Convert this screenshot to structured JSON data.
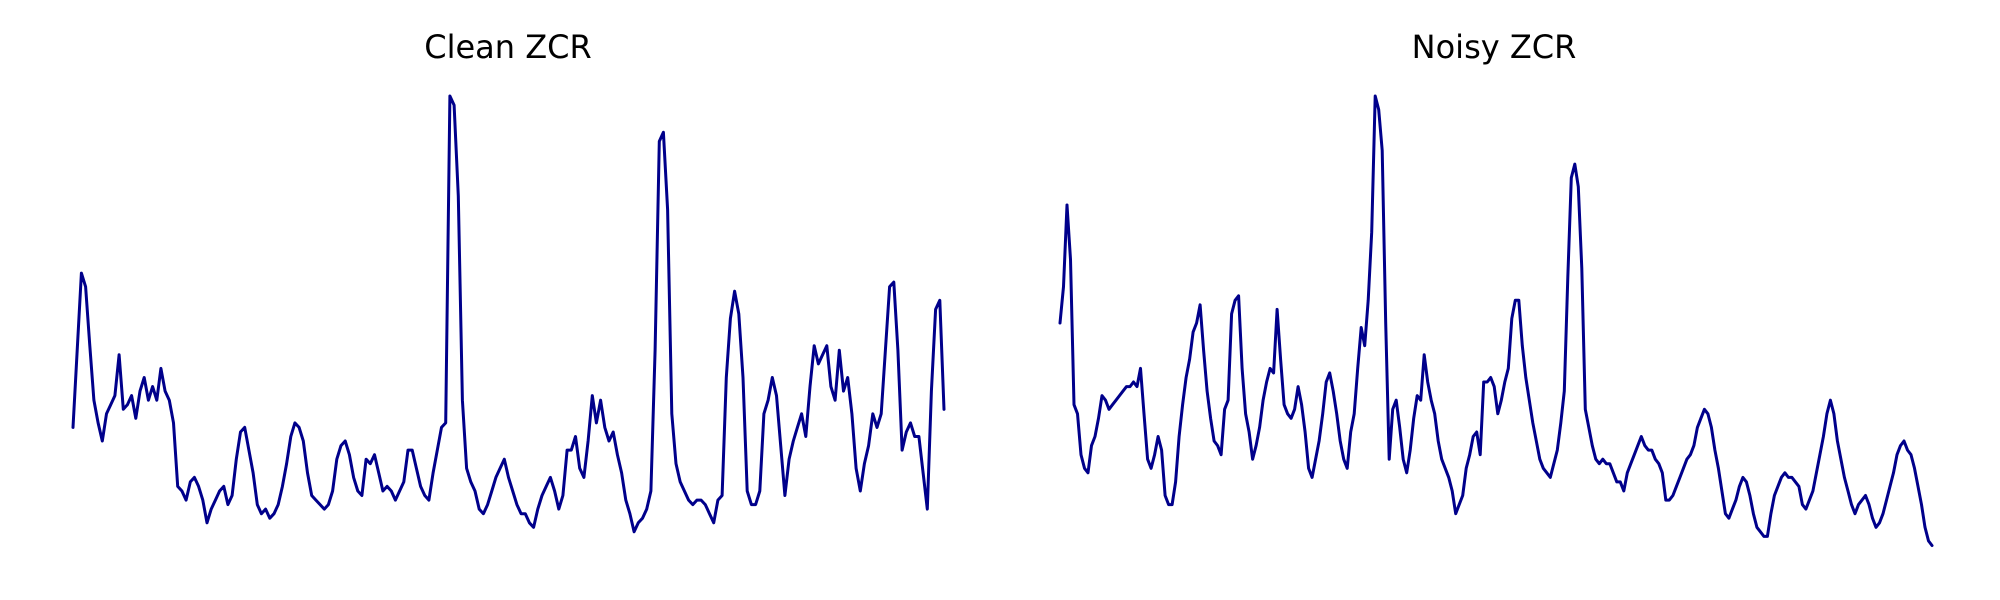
{
  "colors": {
    "line": "#00008B",
    "background": "#ffffff"
  },
  "chart_data": [
    {
      "type": "line",
      "title": "Clean ZCR",
      "xlabel": "",
      "ylabel": "",
      "axes": "off",
      "grid": false,
      "ylim": [
        0,
        1
      ],
      "series": [
        {
          "values": [
            0.27,
            0.44,
            0.61,
            0.58,
            0.45,
            0.33,
            0.28,
            0.24,
            0.3,
            0.32,
            0.34,
            0.43,
            0.31,
            0.32,
            0.34,
            0.29,
            0.35,
            0.38,
            0.33,
            0.36,
            0.33,
            0.4,
            0.35,
            0.33,
            0.28,
            0.14,
            0.13,
            0.11,
            0.15,
            0.16,
            0.14,
            0.11,
            0.06,
            0.09,
            0.11,
            0.13,
            0.14,
            0.1,
            0.12,
            0.2,
            0.26,
            0.27,
            0.22,
            0.17,
            0.1,
            0.08,
            0.09,
            0.07,
            0.08,
            0.1,
            0.14,
            0.19,
            0.25,
            0.28,
            0.27,
            0.24,
            0.17,
            0.12,
            0.11,
            0.1,
            0.09,
            0.1,
            0.13,
            0.2,
            0.23,
            0.24,
            0.21,
            0.16,
            0.13,
            0.12,
            0.2,
            0.19,
            0.21,
            0.17,
            0.13,
            0.14,
            0.13,
            0.11,
            0.13,
            0.15,
            0.22,
            0.22,
            0.18,
            0.14,
            0.12,
            0.11,
            0.17,
            0.22,
            0.27,
            0.28,
            1.0,
            0.98,
            0.78,
            0.33,
            0.18,
            0.15,
            0.13,
            0.09,
            0.08,
            0.1,
            0.13,
            0.16,
            0.18,
            0.2,
            0.16,
            0.13,
            0.1,
            0.08,
            0.08,
            0.06,
            0.05,
            0.09,
            0.12,
            0.14,
            0.16,
            0.13,
            0.09,
            0.12,
            0.22,
            0.22,
            0.25,
            0.18,
            0.16,
            0.24,
            0.34,
            0.28,
            0.33,
            0.27,
            0.24,
            0.26,
            0.21,
            0.17,
            0.11,
            0.08,
            0.04,
            0.06,
            0.07,
            0.09,
            0.13,
            0.44,
            0.9,
            0.92,
            0.75,
            0.3,
            0.19,
            0.15,
            0.13,
            0.11,
            0.1,
            0.11,
            0.11,
            0.1,
            0.08,
            0.06,
            0.11,
            0.12,
            0.38,
            0.51,
            0.57,
            0.52,
            0.38,
            0.13,
            0.1,
            0.1,
            0.13,
            0.3,
            0.33,
            0.38,
            0.34,
            0.23,
            0.12,
            0.2,
            0.24,
            0.27,
            0.3,
            0.25,
            0.36,
            0.45,
            0.41,
            0.43,
            0.45,
            0.36,
            0.33,
            0.44,
            0.35,
            0.38,
            0.3,
            0.18,
            0.13,
            0.19,
            0.23,
            0.3,
            0.27,
            0.3,
            0.44,
            0.58,
            0.59,
            0.44,
            0.22,
            0.26,
            0.28,
            0.25,
            0.25,
            0.17,
            0.09,
            0.35,
            0.53,
            0.55,
            0.31
          ]
        }
      ]
    },
    {
      "type": "line",
      "title": "Noisy ZCR",
      "xlabel": "",
      "ylabel": "",
      "axes": "off",
      "grid": false,
      "ylim": [
        0,
        1
      ],
      "series": [
        {
          "values": [
            0.5,
            0.58,
            0.76,
            0.64,
            0.32,
            0.3,
            0.21,
            0.18,
            0.17,
            0.23,
            0.25,
            0.29,
            0.34,
            0.33,
            0.31,
            0.32,
            0.33,
            0.34,
            0.35,
            0.36,
            0.36,
            0.37,
            0.36,
            0.4,
            0.3,
            0.2,
            0.18,
            0.21,
            0.25,
            0.22,
            0.12,
            0.1,
            0.1,
            0.15,
            0.25,
            0.32,
            0.38,
            0.42,
            0.48,
            0.5,
            0.54,
            0.44,
            0.35,
            0.29,
            0.24,
            0.23,
            0.21,
            0.31,
            0.33,
            0.52,
            0.55,
            0.56,
            0.4,
            0.3,
            0.26,
            0.2,
            0.23,
            0.27,
            0.33,
            0.37,
            0.4,
            0.39,
            0.53,
            0.42,
            0.32,
            0.3,
            0.29,
            0.31,
            0.36,
            0.32,
            0.26,
            0.18,
            0.16,
            0.2,
            0.24,
            0.3,
            0.37,
            0.39,
            0.35,
            0.3,
            0.24,
            0.2,
            0.18,
            0.26,
            0.3,
            0.4,
            0.49,
            0.45,
            0.55,
            0.7,
            1.0,
            0.97,
            0.88,
            0.5,
            0.2,
            0.31,
            0.33,
            0.27,
            0.2,
            0.17,
            0.22,
            0.29,
            0.34,
            0.33,
            0.43,
            0.37,
            0.33,
            0.3,
            0.24,
            0.2,
            0.18,
            0.16,
            0.13,
            0.08,
            0.1,
            0.12,
            0.18,
            0.21,
            0.25,
            0.26,
            0.21,
            0.37,
            0.37,
            0.38,
            0.36,
            0.3,
            0.33,
            0.37,
            0.4,
            0.51,
            0.55,
            0.55,
            0.45,
            0.38,
            0.33,
            0.28,
            0.24,
            0.2,
            0.18,
            0.17,
            0.16,
            0.19,
            0.22,
            0.28,
            0.35,
            0.6,
            0.82,
            0.85,
            0.8,
            0.62,
            0.31,
            0.27,
            0.23,
            0.2,
            0.19,
            0.2,
            0.19,
            0.19,
            0.17,
            0.15,
            0.15,
            0.13,
            0.17,
            0.19,
            0.21,
            0.23,
            0.25,
            0.23,
            0.22,
            0.22,
            0.2,
            0.19,
            0.17,
            0.11,
            0.11,
            0.12,
            0.14,
            0.16,
            0.18,
            0.2,
            0.21,
            0.23,
            0.27,
            0.29,
            0.31,
            0.3,
            0.27,
            0.22,
            0.18,
            0.13,
            0.08,
            0.07,
            0.09,
            0.11,
            0.14,
            0.16,
            0.15,
            0.12,
            0.08,
            0.05,
            0.04,
            0.03,
            0.03,
            0.08,
            0.12,
            0.14,
            0.16,
            0.17,
            0.16,
            0.16,
            0.15,
            0.14,
            0.1,
            0.09,
            0.11,
            0.13,
            0.17,
            0.21,
            0.25,
            0.3,
            0.33,
            0.3,
            0.24,
            0.2,
            0.16,
            0.13,
            0.1,
            0.08,
            0.1,
            0.11,
            0.12,
            0.1,
            0.07,
            0.05,
            0.06,
            0.08,
            0.11,
            0.14,
            0.17,
            0.21,
            0.23,
            0.24,
            0.22,
            0.21,
            0.18,
            0.14,
            0.1,
            0.05,
            0.02,
            0.01
          ]
        }
      ]
    }
  ]
}
